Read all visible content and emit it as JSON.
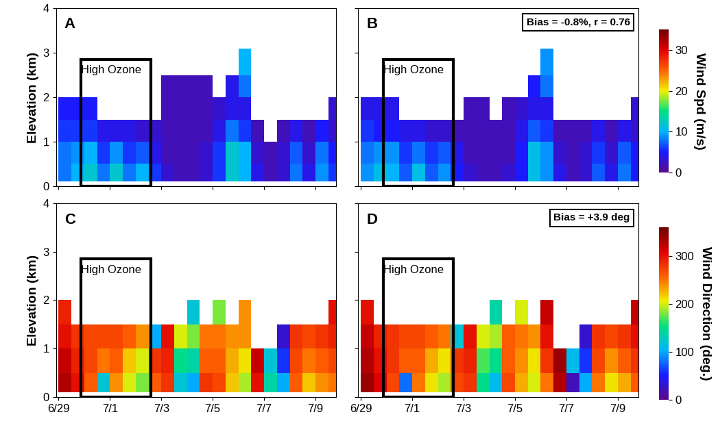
{
  "chart_data": [
    {
      "type": "heatmap",
      "panel_label": "A",
      "ylabel": "Elevation (km)",
      "tick_labels": "y",
      "xlim": [
        -0.1,
        10.8
      ],
      "xticks": [
        {
          "value": 0,
          "label": "6/29"
        },
        {
          "value": 2,
          "label": "7/1"
        },
        {
          "value": 4,
          "label": "7/3"
        },
        {
          "value": 6,
          "label": "7/5"
        },
        {
          "value": 8,
          "label": "7/7"
        },
        {
          "value": 10,
          "label": "7/9"
        }
      ],
      "ylim": [
        0,
        4
      ],
      "yticks": [
        0,
        1,
        2,
        3,
        4
      ],
      "highlight": {
        "text": "High Ozone",
        "x": [
          0.88,
          3.6
        ],
        "y": [
          0,
          2.85
        ]
      },
      "x_edges": [
        0,
        0.5,
        1,
        1.5,
        2,
        2.5,
        3,
        3.5,
        4,
        4.5,
        5,
        5.5,
        6,
        6.5,
        7,
        7.5,
        8,
        8.5,
        9,
        9.5,
        10,
        10.5,
        10.8
      ],
      "y_edges": [
        0.1,
        0.5,
        1.0,
        1.5,
        2.0,
        2.5,
        3.1
      ],
      "cells": [
        [
          8,
          8,
          6,
          5,
          null,
          null
        ],
        [
          10,
          9,
          6,
          5,
          null,
          null
        ],
        [
          12,
          10,
          6,
          5,
          null,
          null
        ],
        [
          8,
          6,
          4,
          null,
          null,
          null
        ],
        [
          12,
          9,
          4,
          null,
          null,
          null
        ],
        [
          8,
          6,
          4,
          null,
          null,
          null
        ],
        [
          10,
          7,
          3,
          null,
          null,
          null
        ],
        [
          6,
          4,
          3,
          null,
          null,
          null
        ],
        [
          3,
          2,
          2,
          2,
          2,
          null
        ],
        [
          2,
          2,
          2,
          2,
          2,
          null
        ],
        [
          2,
          2,
          2,
          2,
          2,
          null
        ],
        [
          3,
          3,
          2,
          2,
          2,
          null
        ],
        [
          6,
          6,
          4,
          3,
          null,
          null
        ],
        [
          12,
          12,
          8,
          4,
          4,
          null
        ],
        [
          10,
          10,
          6,
          4,
          8,
          10
        ],
        [
          4,
          3,
          2,
          null,
          null,
          null
        ],
        [
          2,
          2,
          null,
          null,
          null,
          null
        ],
        [
          3,
          3,
          2,
          null,
          null,
          null
        ],
        [
          8,
          7,
          4,
          null,
          null,
          null
        ],
        [
          4,
          3,
          2,
          null,
          null,
          null
        ],
        [
          9,
          8,
          5,
          null,
          null,
          null
        ],
        [
          6,
          5,
          3,
          3,
          null,
          null
        ]
      ]
    },
    {
      "type": "heatmap",
      "panel_label": "B",
      "stats": "Bias = -0.8%, r = 0.76",
      "tick_labels": false,
      "xlim": [
        -0.1,
        10.8
      ],
      "xticks": [
        {
          "value": 0,
          "label": "6/29"
        },
        {
          "value": 2,
          "label": "7/1"
        },
        {
          "value": 4,
          "label": "7/3"
        },
        {
          "value": 6,
          "label": "7/5"
        },
        {
          "value": 8,
          "label": "7/7"
        },
        {
          "value": 10,
          "label": "7/9"
        }
      ],
      "ylim": [
        0,
        4
      ],
      "yticks": [
        0,
        1,
        2,
        3,
        4
      ],
      "highlight": {
        "text": "High Ozone",
        "x": [
          0.88,
          3.6
        ],
        "y": [
          0,
          2.85
        ]
      },
      "x_edges": [
        0,
        0.5,
        1,
        1.5,
        2,
        2.5,
        3,
        3.5,
        4,
        4.5,
        5,
        5.5,
        6,
        6.5,
        7,
        7.5,
        8,
        8.5,
        9,
        9.5,
        10,
        10.5,
        10.8
      ],
      "y_edges": [
        0.1,
        0.5,
        1.0,
        1.5,
        2.0,
        2.5,
        3.1
      ],
      "cells": [
        [
          9,
          8,
          6,
          4,
          null,
          null
        ],
        [
          11,
          9,
          5,
          4,
          null,
          null
        ],
        [
          10,
          9,
          5,
          4,
          null,
          null
        ],
        [
          7,
          6,
          4,
          null,
          null,
          null
        ],
        [
          11,
          8,
          4,
          null,
          null,
          null
        ],
        [
          7,
          6,
          3,
          null,
          null,
          null
        ],
        [
          9,
          7,
          3,
          null,
          null,
          null
        ],
        [
          5,
          4,
          2,
          null,
          null,
          null
        ],
        [
          3,
          2,
          2,
          2,
          null,
          null
        ],
        [
          2,
          2,
          2,
          2,
          null,
          null
        ],
        [
          2,
          2,
          2,
          null,
          null,
          null
        ],
        [
          3,
          2,
          2,
          2,
          null,
          null
        ],
        [
          5,
          5,
          4,
          3,
          null,
          null
        ],
        [
          11,
          11,
          7,
          4,
          5,
          null
        ],
        [
          9,
          9,
          6,
          4,
          8,
          9
        ],
        [
          4,
          3,
          2,
          null,
          null,
          null
        ],
        [
          2,
          2,
          2,
          null,
          null,
          null
        ],
        [
          3,
          3,
          2,
          null,
          null,
          null
        ],
        [
          7,
          6,
          4,
          null,
          null,
          null
        ],
        [
          4,
          3,
          2,
          null,
          null,
          null
        ],
        [
          8,
          7,
          4,
          null,
          null,
          null
        ],
        [
          5,
          5,
          3,
          3,
          null,
          null
        ]
      ]
    },
    {
      "type": "heatmap",
      "panel_label": "C",
      "ylabel": "Elevation (km)",
      "tick_labels": true,
      "xlim": [
        -0.1,
        10.8
      ],
      "xticks": [
        {
          "value": 0,
          "label": "6/29"
        },
        {
          "value": 2,
          "label": "7/1"
        },
        {
          "value": 4,
          "label": "7/3"
        },
        {
          "value": 6,
          "label": "7/5"
        },
        {
          "value": 8,
          "label": "7/7"
        },
        {
          "value": 10,
          "label": "7/9"
        }
      ],
      "ylim": [
        0,
        4
      ],
      "yticks": [
        0,
        1,
        2,
        3,
        4
      ],
      "highlight": {
        "text": "High Ozone",
        "x": [
          0.88,
          3.6
        ],
        "y": [
          0,
          2.85
        ]
      },
      "x_edges": [
        0,
        0.5,
        1,
        1.5,
        2,
        2.5,
        3,
        3.5,
        4,
        4.5,
        5,
        5.5,
        6,
        6.5,
        7,
        7.5,
        8,
        8.5,
        9,
        9.5,
        10,
        10.5,
        10.8
      ],
      "y_edges": [
        0.1,
        0.5,
        1.0,
        1.5,
        2.0,
        2.5,
        3.1
      ],
      "cells": [
        [
          330,
          320,
          300,
          290,
          null,
          null
        ],
        [
          300,
          290,
          280,
          null,
          null,
          null
        ],
        [
          260,
          270,
          270,
          null,
          null,
          null
        ],
        [
          120,
          250,
          270,
          null,
          null,
          null
        ],
        [
          240,
          260,
          270,
          null,
          null,
          null
        ],
        [
          200,
          220,
          260,
          null,
          null,
          null
        ],
        [
          180,
          200,
          240,
          null,
          null,
          null
        ],
        [
          260,
          280,
          100,
          null,
          null,
          null
        ],
        [
          280,
          290,
          300,
          null,
          null,
          null
        ],
        [
          120,
          150,
          200,
          null,
          null,
          null
        ],
        [
          100,
          140,
          180,
          120,
          null,
          null
        ],
        [
          280,
          260,
          250,
          null,
          null,
          null
        ],
        [
          270,
          260,
          250,
          180,
          null,
          null
        ],
        [
          220,
          230,
          240,
          null,
          null,
          null
        ],
        [
          190,
          210,
          240,
          240,
          null,
          null
        ],
        [
          300,
          320,
          null,
          null,
          null,
          null
        ],
        [
          140,
          120,
          null,
          null,
          null,
          null
        ],
        [
          100,
          60,
          30,
          null,
          null,
          null
        ],
        [
          260,
          270,
          280,
          null,
          null,
          null
        ],
        [
          220,
          250,
          270,
          null,
          null,
          null
        ],
        [
          240,
          260,
          280,
          null,
          null,
          null
        ],
        [
          250,
          270,
          290,
          300,
          null,
          null
        ]
      ]
    },
    {
      "type": "heatmap",
      "panel_label": "D",
      "stats": "Bias = +3.9 deg",
      "tick_labels": "x",
      "xlim": [
        -0.1,
        10.8
      ],
      "xticks": [
        {
          "value": 0,
          "label": "6/29"
        },
        {
          "value": 2,
          "label": "7/1"
        },
        {
          "value": 4,
          "label": "7/3"
        },
        {
          "value": 6,
          "label": "7/5"
        },
        {
          "value": 8,
          "label": "7/7"
        },
        {
          "value": 10,
          "label": "7/9"
        }
      ],
      "ylim": [
        0,
        4
      ],
      "yticks": [
        0,
        1,
        2,
        3,
        4
      ],
      "highlight": {
        "text": "High Ozone",
        "x": [
          0.88,
          3.6
        ],
        "y": [
          0,
          2.85
        ]
      },
      "x_edges": [
        0,
        0.5,
        1,
        1.5,
        2,
        2.5,
        3,
        3.5,
        4,
        4.5,
        5,
        5.5,
        6,
        6.5,
        7,
        7.5,
        8,
        8.5,
        9,
        9.5,
        10,
        10.5,
        10.8
      ],
      "y_edges": [
        0.1,
        0.5,
        1.0,
        1.5,
        2.0,
        2.5,
        3.1
      ],
      "cells": [
        [
          340,
          330,
          320,
          300,
          null,
          null
        ],
        [
          310,
          300,
          290,
          null,
          null,
          null
        ],
        [
          270,
          280,
          280,
          null,
          null,
          null
        ],
        [
          80,
          260,
          270,
          null,
          null,
          null
        ],
        [
          250,
          260,
          270,
          null,
          null,
          null
        ],
        [
          210,
          230,
          260,
          null,
          null,
          null
        ],
        [
          190,
          210,
          250,
          null,
          null,
          null
        ],
        [
          270,
          280,
          120,
          null,
          null,
          null
        ],
        [
          280,
          290,
          300,
          null,
          null,
          null
        ],
        [
          150,
          170,
          200,
          null,
          null,
          null
        ],
        [
          110,
          150,
          190,
          140,
          null,
          null
        ],
        [
          270,
          260,
          260,
          null,
          null,
          null
        ],
        [
          230,
          240,
          250,
          200,
          null,
          null
        ],
        [
          200,
          210,
          240,
          null,
          null,
          null
        ],
        [
          250,
          280,
          300,
          320,
          null,
          null
        ],
        [
          330,
          340,
          null,
          null,
          null,
          null
        ],
        [
          20,
          110,
          null,
          null,
          null,
          null
        ],
        [
          100,
          60,
          30,
          null,
          null,
          null
        ],
        [
          250,
          270,
          280,
          null,
          null,
          null
        ],
        [
          210,
          240,
          270,
          null,
          null,
          null
        ],
        [
          230,
          260,
          280,
          null,
          null,
          null
        ],
        [
          260,
          280,
          300,
          320,
          null,
          null
        ]
      ]
    }
  ],
  "colorbars": [
    {
      "label": "Wind Spd (m/s)",
      "range": [
        0,
        35
      ],
      "ticks": [
        0,
        10,
        20,
        30
      ],
      "panels": [
        "A",
        "B"
      ]
    },
    {
      "label": "Wind Direction (deg.)",
      "range": [
        0,
        360
      ],
      "ticks": [
        0,
        100,
        200,
        300
      ],
      "panels": [
        "C",
        "D"
      ]
    }
  ]
}
